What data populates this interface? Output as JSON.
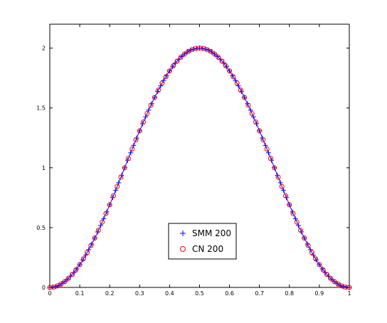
{
  "chart_data": {
    "type": "scatter",
    "title": "",
    "xlabel": "",
    "ylabel": "",
    "xlim": [
      0,
      1
    ],
    "ylim": [
      0,
      2.2
    ],
    "x_ticks": [
      "0",
      "0.1",
      "0.2",
      "0.3",
      "0.4",
      "0.5",
      "0.6",
      "0.7",
      "0.8",
      "0.9",
      "1"
    ],
    "y_ticks": [
      "0",
      "0.5",
      "1",
      "1.5",
      "2"
    ],
    "grid": false,
    "legend_position": "center-bottom",
    "curve": {
      "function": "1 - cos(2*pi*x)",
      "x_start": 0,
      "x_end": 1,
      "step": 0.01,
      "color": "#0000ff"
    },
    "series": [
      {
        "name": "SMM 200",
        "marker": "plus",
        "color": "#0000ff",
        "function": "1 - cos(2*pi*x)",
        "x_start": 0,
        "x_end": 1,
        "step": 0.01
      },
      {
        "name": "CN 200",
        "marker": "circle",
        "color": "#ff0000",
        "function": "1 - cos(2*pi*x)",
        "x_start": 0,
        "x_end": 1,
        "step": 0.0125
      }
    ]
  }
}
